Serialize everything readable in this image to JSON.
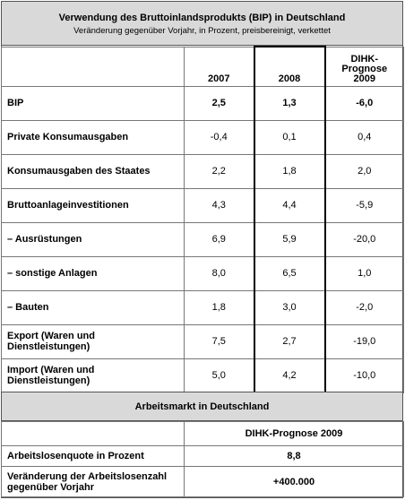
{
  "header": {
    "title": "Verwendung des Bruttoinlandsprodukts (BIP) in Deutschland",
    "subtitle": "Veränderung gegenüber Vorjahr, in Prozent, preisbereinigt, verkettet"
  },
  "columns": {
    "c2007": "2007",
    "c2008": "2008",
    "forecast_line1": "DIHK-",
    "forecast_line2": "Prognose",
    "forecast_line3": "2009"
  },
  "rows": [
    {
      "label": "BIP",
      "v2007": "2,5",
      "v2008": "1,3",
      "v2009": "-6,0"
    },
    {
      "label": "Private Konsumausgaben",
      "v2007": "-0,4",
      "v2008": "0,1",
      "v2009": "0,4"
    },
    {
      "label": "Konsumausgaben des Staates",
      "v2007": "2,2",
      "v2008": "1,8",
      "v2009": "2,0"
    },
    {
      "label": "Bruttoanlageinvestitionen",
      "v2007": "4,3",
      "v2008": "4,4",
      "v2009": "-5,9"
    },
    {
      "label": "– Ausrüstungen",
      "v2007": "6,9",
      "v2008": "5,9",
      "v2009": "-20,0"
    },
    {
      "label": "– sonstige Anlagen",
      "v2007": "8,0",
      "v2008": "6,5",
      "v2009": "1,0"
    },
    {
      "label": "– Bauten",
      "v2007": "1,8",
      "v2008": "3,0",
      "v2009": "-2,0"
    },
    {
      "label": "Export (Waren und Dienstleistungen)",
      "v2007": "7,5",
      "v2008": "2,7",
      "v2009": "-19,0"
    },
    {
      "label": "Import (Waren und Dienstleistungen)",
      "v2007": "5,0",
      "v2008": "4,2",
      "v2009": "-10,0"
    }
  ],
  "labor": {
    "title": "Arbeitsmarkt in Deutschland",
    "forecast_header": "DIHK-Prognose 2009",
    "rows": [
      {
        "label": "Arbeitslosenquote in Prozent",
        "value": "8,8"
      },
      {
        "label": "Veränderung der Arbeitslosenzahl gegenüber Vorjahr",
        "value": "+400.000"
      }
    ]
  }
}
